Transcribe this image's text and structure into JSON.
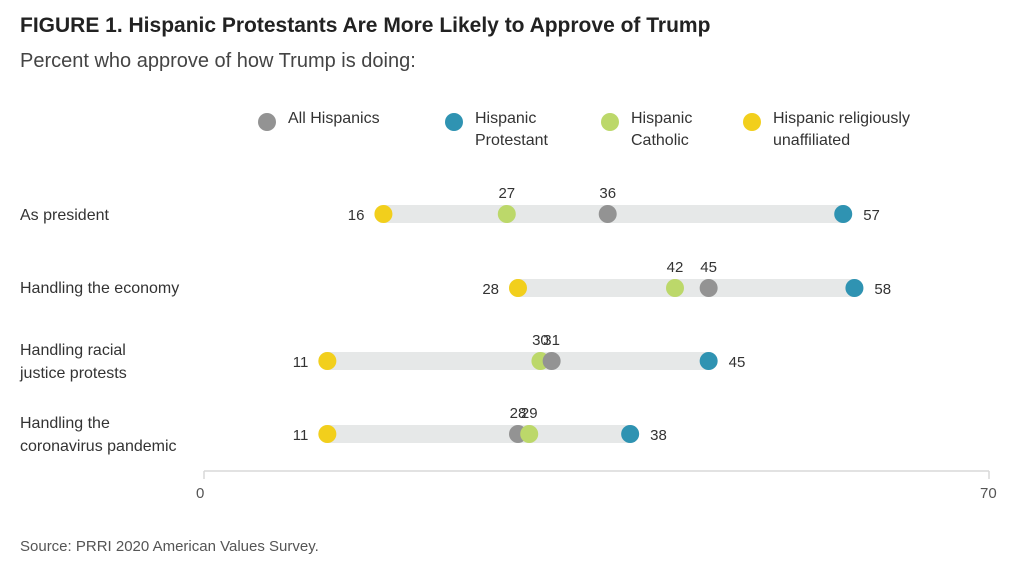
{
  "title": "FIGURE 1. Hispanic Protestants Are More Likely to Approve of Trump",
  "subtitle": "Percent who approve of how Trump is doing:",
  "source": "Source: PRRI 2020 American Values Survey.",
  "colors": {
    "All Hispanics": "#939393",
    "Hispanic Protestant": "#2f93b2",
    "Hispanic Catholic": "#bcd86a",
    "Hispanic religiously unaffiliated": "#f2cf1c",
    "track": "#e6e8e8"
  },
  "legend": [
    {
      "label": "All Hispanics",
      "color": "#939393"
    },
    {
      "label": "Hispanic\nProtestant",
      "color": "#2f93b2"
    },
    {
      "label": "Hispanic\nCatholic",
      "color": "#bcd86a"
    },
    {
      "label": "Hispanic religiously\nunaffiliated",
      "color": "#f2cf1c"
    }
  ],
  "chart_data": {
    "type": "scatter",
    "title": "FIGURE 1. Hispanic Protestants Are More Likely to Approve of Trump",
    "subtitle": "Percent who approve of how Trump is doing:",
    "categories": [
      "As president",
      "Handling the economy",
      "Handling racial\njustice protests",
      "Handling the\ncoronavirus pandemic"
    ],
    "series": [
      {
        "name": "All Hispanics",
        "values": [
          36,
          45,
          31,
          28
        ]
      },
      {
        "name": "Hispanic Protestant",
        "values": [
          57,
          58,
          45,
          38
        ]
      },
      {
        "name": "Hispanic Catholic",
        "values": [
          27,
          42,
          30,
          29
        ]
      },
      {
        "name": "Hispanic religiously unaffiliated",
        "values": [
          16,
          28,
          11,
          11
        ]
      }
    ],
    "xlim": [
      0,
      70
    ],
    "x_ticks": [
      "0",
      "70"
    ],
    "grid": false,
    "legend_position": "top"
  }
}
